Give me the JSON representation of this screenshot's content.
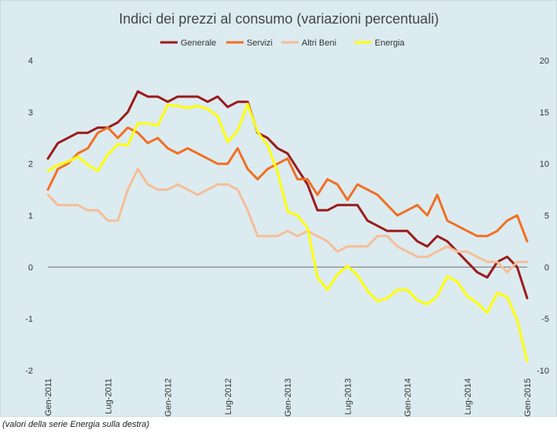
{
  "chart_data": {
    "type": "line",
    "title": "Indici dei prezzi al consumo (variazioni percentuali)",
    "x": [
      "Gen-2011",
      "Feb-2011",
      "Mar-2011",
      "Apr-2011",
      "Mag-2011",
      "Giu-2011",
      "Lug-2011",
      "Ago-2011",
      "Set-2011",
      "Ott-2011",
      "Nov-2011",
      "Dic-2011",
      "Gen-2012",
      "Feb-2012",
      "Mar-2012",
      "Apr-2012",
      "Mag-2012",
      "Giu-2012",
      "Lug-2012",
      "Ago-2012",
      "Set-2012",
      "Ott-2012",
      "Nov-2012",
      "Dic-2012",
      "Gen-2013",
      "Feb-2013",
      "Mar-2013",
      "Apr-2013",
      "Mag-2013",
      "Giu-2013",
      "Lug-2013",
      "Ago-2013",
      "Set-2013",
      "Ott-2013",
      "Nov-2013",
      "Dic-2013",
      "Gen-2014",
      "Feb-2014",
      "Mar-2014",
      "Apr-2014",
      "Mag-2014",
      "Giu-2014",
      "Lug-2014",
      "Ago-2014",
      "Set-2014",
      "Ott-2014",
      "Nov-2014",
      "Dic-2014",
      "Gen-2015"
    ],
    "x_tick_labels": [
      "Gen-2011",
      "Lug-2011",
      "Gen-2012",
      "Lug-2012",
      "Gen-2013",
      "Lug-2013",
      "Gen-2014",
      "Lug-2014",
      "Gen-2015"
    ],
    "y_left_ticks": [
      "4",
      "3",
      "2",
      "1",
      "0",
      "-1",
      "-2"
    ],
    "y_right_ticks": [
      "20",
      "15",
      "10",
      "5",
      "0",
      "-5",
      "-10"
    ],
    "ylim_left": [
      -2,
      4
    ],
    "ylim_right": [
      -10,
      20
    ],
    "legend_position": "top",
    "series": [
      {
        "name": "Generale",
        "axis": "left",
        "color": "#9b1b1b",
        "values": [
          2.1,
          2.4,
          2.5,
          2.6,
          2.6,
          2.7,
          2.7,
          2.8,
          3.0,
          3.4,
          3.3,
          3.3,
          3.2,
          3.3,
          3.3,
          3.3,
          3.2,
          3.3,
          3.1,
          3.2,
          3.2,
          2.6,
          2.5,
          2.3,
          2.2,
          1.9,
          1.6,
          1.1,
          1.1,
          1.2,
          1.2,
          1.2,
          0.9,
          0.8,
          0.7,
          0.7,
          0.7,
          0.5,
          0.4,
          0.6,
          0.5,
          0.3,
          0.1,
          -0.1,
          -0.2,
          0.1,
          0.2,
          0.0,
          -0.6
        ]
      },
      {
        "name": "Servizi",
        "axis": "left",
        "color": "#f07023",
        "values": [
          1.5,
          1.9,
          2.0,
          2.2,
          2.3,
          2.6,
          2.7,
          2.5,
          2.7,
          2.6,
          2.4,
          2.5,
          2.3,
          2.2,
          2.3,
          2.2,
          2.1,
          2.0,
          2.0,
          2.3,
          1.9,
          1.7,
          1.9,
          2.0,
          2.1,
          1.7,
          1.7,
          1.4,
          1.7,
          1.6,
          1.3,
          1.6,
          1.5,
          1.4,
          1.2,
          1.0,
          1.1,
          1.2,
          1.0,
          1.4,
          0.9,
          0.8,
          0.7,
          0.6,
          0.6,
          0.7,
          0.9,
          1.0,
          0.5
        ]
      },
      {
        "name": "Altri Beni",
        "axis": "left",
        "color": "#f5be98",
        "values": [
          1.4,
          1.2,
          1.2,
          1.2,
          1.1,
          1.1,
          0.9,
          0.9,
          1.5,
          1.9,
          1.6,
          1.5,
          1.5,
          1.6,
          1.5,
          1.4,
          1.5,
          1.6,
          1.6,
          1.5,
          1.1,
          0.6,
          0.6,
          0.6,
          0.7,
          0.6,
          0.7,
          0.6,
          0.5,
          0.3,
          0.4,
          0.4,
          0.4,
          0.6,
          0.6,
          0.4,
          0.3,
          0.2,
          0.2,
          0.3,
          0.4,
          0.3,
          0.3,
          0.2,
          0.1,
          0.1,
          -0.1,
          0.1,
          0.1
        ]
      },
      {
        "name": "Energia",
        "axis": "right",
        "color": "#ffff00",
        "values": [
          9.3,
          9.9,
          10.2,
          10.7,
          9.9,
          9.3,
          10.9,
          11.9,
          11.8,
          13.9,
          13.9,
          13.7,
          15.7,
          15.6,
          15.4,
          15.6,
          15.3,
          14.6,
          12.1,
          13.2,
          15.8,
          13.1,
          11.8,
          9.2,
          5.4,
          5.0,
          3.8,
          -1.0,
          -2.2,
          -0.7,
          0.1,
          -0.8,
          -2.3,
          -3.3,
          -3.0,
          -2.2,
          -2.2,
          -3.2,
          -3.6,
          -2.8,
          -0.9,
          -1.4,
          -2.8,
          -3.5,
          -4.4,
          -2.5,
          -2.9,
          -5.1,
          -9.1
        ]
      }
    ]
  },
  "footnote": "(valori della serie Energia sulla destra)"
}
